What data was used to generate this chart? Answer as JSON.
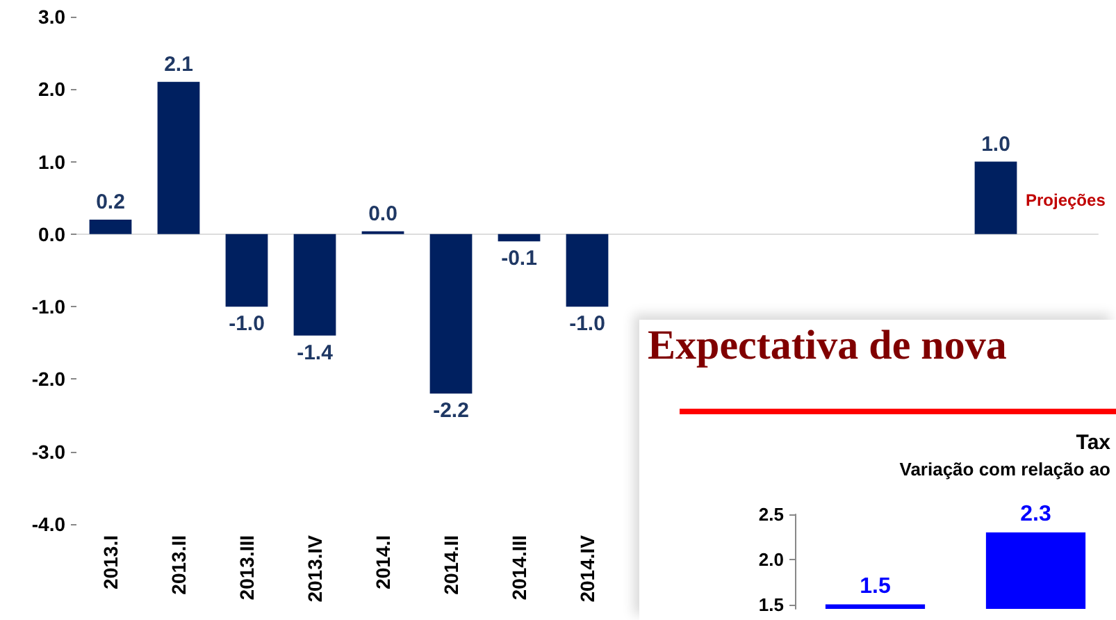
{
  "chart_data": [
    {
      "type": "bar",
      "categories": [
        "2013.I",
        "2013.II",
        "2013.III",
        "2013.IV",
        "2014.I",
        "2014.II",
        "2014.III",
        "2014.IV",
        null,
        null,
        null,
        null,
        null,
        null,
        null
      ],
      "values": [
        0.2,
        2.1,
        -1.0,
        -1.4,
        0.0,
        -2.2,
        -0.1,
        -1.0,
        null,
        null,
        null,
        null,
        null,
        1.0,
        null
      ],
      "colors": [
        "#002060",
        "#002060",
        "#002060",
        "#002060",
        "#002060",
        "#002060",
        "#002060",
        "#002060",
        "#002060",
        "#002060",
        "#002060",
        "#002060",
        "#002060",
        "#002060",
        "#c00000"
      ],
      "value_labels": [
        "0.2",
        "2.1",
        "-1.0",
        "-1.4",
        "0.0",
        "-2.2",
        "-0.1",
        "-1.0",
        null,
        null,
        null,
        null,
        null,
        "1.0",
        null
      ],
      "ylim": [
        -4.0,
        3.0
      ],
      "yticks": [
        {
          "value": -4,
          "label": "-4.0"
        },
        {
          "value": -3,
          "label": "-3.0"
        },
        {
          "value": -2,
          "label": "-2.0"
        },
        {
          "value": -1,
          "label": "-1.0"
        },
        {
          "value": 0,
          "label": "0.0"
        },
        {
          "value": 1,
          "label": "1.0"
        },
        {
          "value": 2,
          "label": "2.0"
        },
        {
          "value": 3,
          "label": "3.0"
        }
      ],
      "annotations": [
        "Projeções"
      ]
    },
    {
      "type": "bar",
      "title": "Expectativa de nova",
      "subtitle": "Tax",
      "annotations": [
        "Variação com relação ao"
      ],
      "categories": [
        null,
        null
      ],
      "values": [
        1.5,
        2.3
      ],
      "color": "#0000ff",
      "data_labels": true,
      "ylim": [
        1.45,
        2.5
      ],
      "yticks": [
        {
          "value": 1.5,
          "label": "1.5"
        },
        {
          "value": 2.0,
          "label": "2.0"
        },
        {
          "value": 2.5,
          "label": "2.5"
        }
      ]
    }
  ]
}
